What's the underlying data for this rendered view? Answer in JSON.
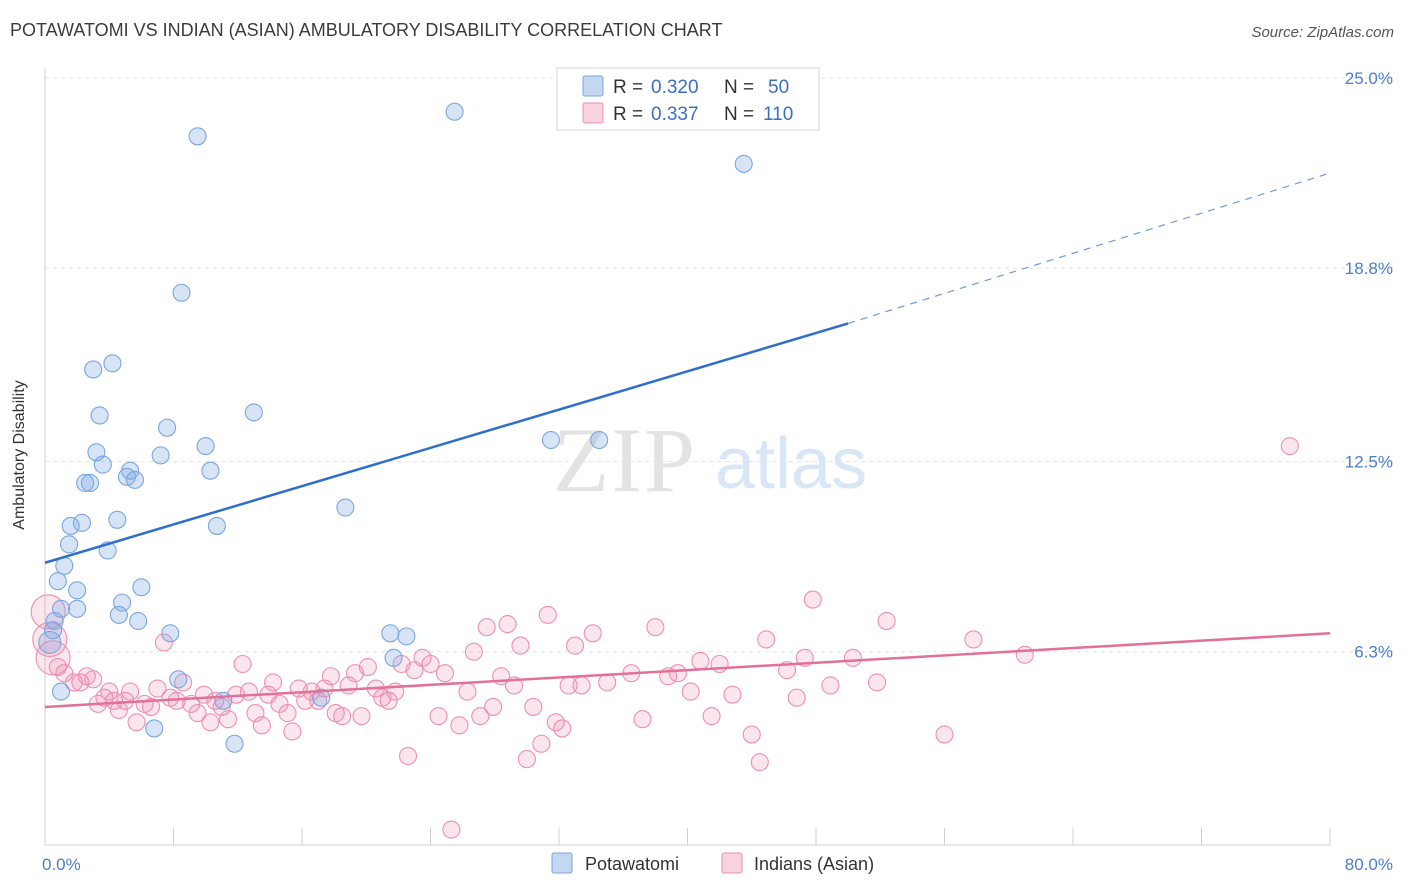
{
  "header": {
    "title": "POTAWATOMI VS INDIAN (ASIAN) AMBULATORY DISABILITY CORRELATION CHART",
    "source": "Source: ZipAtlas.com"
  },
  "watermark": {
    "zip": "ZIP",
    "atlas": "atlas"
  },
  "chart_data": {
    "type": "scatter",
    "ylabel": "Ambulatory Disability",
    "xlim": [
      0,
      80
    ],
    "ylim": [
      0,
      25.0
    ],
    "y_ticks": [
      6.3,
      12.5,
      18.8,
      25.0
    ],
    "y_tick_labels": [
      "6.3%",
      "12.5%",
      "18.8%",
      "25.0%"
    ],
    "x_tick_labels": [
      "0.0%",
      "80.0%"
    ],
    "legend_top": [
      {
        "r_label": "R =",
        "r_value": "0.320",
        "n_label": "N =",
        "n_value": "50",
        "color": "#7aa6e0"
      },
      {
        "r_label": "R =",
        "r_value": "0.337",
        "n_label": "N =",
        "n_value": "110",
        "color": "#ee8fb0"
      }
    ],
    "series": [
      {
        "name": "Potawatomi",
        "color": "#7aa6e0",
        "trend": {
          "x0": 0,
          "y0": 9.2,
          "x1": 50,
          "y1": 17.0,
          "dash_to_x": 80,
          "dash_to_y": 21.9
        },
        "points": [
          [
            0.3,
            6.6
          ],
          [
            0.5,
            7.0
          ],
          [
            0.6,
            7.3
          ],
          [
            0.8,
            8.6
          ],
          [
            1.0,
            7.7
          ],
          [
            1.2,
            9.1
          ],
          [
            1.5,
            9.8
          ],
          [
            1.6,
            10.4
          ],
          [
            2.0,
            8.3
          ],
          [
            2.0,
            7.7
          ],
          [
            2.3,
            10.5
          ],
          [
            2.5,
            11.8
          ],
          [
            2.8,
            11.8
          ],
          [
            3.0,
            15.5
          ],
          [
            3.2,
            12.8
          ],
          [
            3.4,
            14.0
          ],
          [
            3.6,
            12.4
          ],
          [
            3.9,
            9.6
          ],
          [
            4.2,
            15.7
          ],
          [
            4.5,
            10.6
          ],
          [
            4.6,
            7.5
          ],
          [
            4.8,
            7.9
          ],
          [
            5.1,
            12.0
          ],
          [
            5.3,
            12.2
          ],
          [
            5.6,
            11.9
          ],
          [
            5.8,
            7.3
          ],
          [
            6.0,
            8.4
          ],
          [
            6.8,
            3.8
          ],
          [
            7.2,
            12.7
          ],
          [
            7.6,
            13.6
          ],
          [
            7.8,
            6.9
          ],
          [
            8.3,
            5.4
          ],
          [
            8.5,
            18.0
          ],
          [
            9.5,
            23.1
          ],
          [
            10.0,
            13.0
          ],
          [
            10.3,
            12.2
          ],
          [
            10.7,
            10.4
          ],
          [
            11.1,
            4.7
          ],
          [
            11.8,
            3.3
          ],
          [
            13.0,
            14.1
          ],
          [
            17.2,
            4.8
          ],
          [
            18.7,
            11.0
          ],
          [
            21.5,
            6.9
          ],
          [
            21.7,
            6.1
          ],
          [
            22.5,
            6.8
          ],
          [
            25.5,
            23.9
          ],
          [
            31.5,
            13.2
          ],
          [
            34.5,
            13.2
          ],
          [
            43.5,
            22.2
          ],
          [
            1.0,
            5.0
          ]
        ]
      },
      {
        "name": "Indians (Asian)",
        "color": "#ee8fb0",
        "trend": {
          "x0": 0,
          "y0": 4.5,
          "x1": 80,
          "y1": 6.9
        },
        "points": [
          [
            0.2,
            7.6
          ],
          [
            0.3,
            6.7
          ],
          [
            0.5,
            6.1
          ],
          [
            0.8,
            5.8
          ],
          [
            1.2,
            5.6
          ],
          [
            1.8,
            5.3
          ],
          [
            2.2,
            5.3
          ],
          [
            2.6,
            5.5
          ],
          [
            3.0,
            5.4
          ],
          [
            3.3,
            4.6
          ],
          [
            3.7,
            4.8
          ],
          [
            4.0,
            5.0
          ],
          [
            4.3,
            4.7
          ],
          [
            4.6,
            4.4
          ],
          [
            5.0,
            4.7
          ],
          [
            5.3,
            5.0
          ],
          [
            5.7,
            4.0
          ],
          [
            6.2,
            4.6
          ],
          [
            6.6,
            4.5
          ],
          [
            7.0,
            5.1
          ],
          [
            7.4,
            6.6
          ],
          [
            7.8,
            4.8
          ],
          [
            8.2,
            4.7
          ],
          [
            8.6,
            5.3
          ],
          [
            9.1,
            4.6
          ],
          [
            9.5,
            4.3
          ],
          [
            9.9,
            4.9
          ],
          [
            10.3,
            4.0
          ],
          [
            10.6,
            4.7
          ],
          [
            11.0,
            4.5
          ],
          [
            11.4,
            4.1
          ],
          [
            11.9,
            4.9
          ],
          [
            12.3,
            5.9
          ],
          [
            12.7,
            5.0
          ],
          [
            13.1,
            4.3
          ],
          [
            13.5,
            3.9
          ],
          [
            13.9,
            4.9
          ],
          [
            14.2,
            5.3
          ],
          [
            14.6,
            4.6
          ],
          [
            15.1,
            4.3
          ],
          [
            15.4,
            3.7
          ],
          [
            15.8,
            5.1
          ],
          [
            16.2,
            4.7
          ],
          [
            16.6,
            5.0
          ],
          [
            17.0,
            4.7
          ],
          [
            17.4,
            5.1
          ],
          [
            17.8,
            5.5
          ],
          [
            18.1,
            4.3
          ],
          [
            18.5,
            4.2
          ],
          [
            18.9,
            5.2
          ],
          [
            19.3,
            5.6
          ],
          [
            19.7,
            4.2
          ],
          [
            20.1,
            5.8
          ],
          [
            20.6,
            5.1
          ],
          [
            21.0,
            4.8
          ],
          [
            21.4,
            4.7
          ],
          [
            21.8,
            5.0
          ],
          [
            22.2,
            5.9
          ],
          [
            22.6,
            2.9
          ],
          [
            23.0,
            5.7
          ],
          [
            23.5,
            6.1
          ],
          [
            24.0,
            5.9
          ],
          [
            24.5,
            4.2
          ],
          [
            24.9,
            5.6
          ],
          [
            25.3,
            0.5
          ],
          [
            25.8,
            3.9
          ],
          [
            26.3,
            5.0
          ],
          [
            26.7,
            6.3
          ],
          [
            27.1,
            4.2
          ],
          [
            27.5,
            7.1
          ],
          [
            27.9,
            4.5
          ],
          [
            28.4,
            5.5
          ],
          [
            28.8,
            7.2
          ],
          [
            29.2,
            5.2
          ],
          [
            29.6,
            6.5
          ],
          [
            30.0,
            2.8
          ],
          [
            30.4,
            4.5
          ],
          [
            30.9,
            3.3
          ],
          [
            31.3,
            7.5
          ],
          [
            31.8,
            4.0
          ],
          [
            32.2,
            3.8
          ],
          [
            32.6,
            5.2
          ],
          [
            33.0,
            6.5
          ],
          [
            33.4,
            5.2
          ],
          [
            34.1,
            6.9
          ],
          [
            35.0,
            5.3
          ],
          [
            36.5,
            5.6
          ],
          [
            37.2,
            4.1
          ],
          [
            38.0,
            7.1
          ],
          [
            38.8,
            5.5
          ],
          [
            39.4,
            5.6
          ],
          [
            40.2,
            5.0
          ],
          [
            40.8,
            6.0
          ],
          [
            41.5,
            4.2
          ],
          [
            42.0,
            5.9
          ],
          [
            42.8,
            4.9
          ],
          [
            44.0,
            3.6
          ],
          [
            44.5,
            2.7
          ],
          [
            44.9,
            6.7
          ],
          [
            46.2,
            5.7
          ],
          [
            46.8,
            4.8
          ],
          [
            47.3,
            6.1
          ],
          [
            47.8,
            8.0
          ],
          [
            48.9,
            5.2
          ],
          [
            50.3,
            6.1
          ],
          [
            51.8,
            5.3
          ],
          [
            52.4,
            7.3
          ],
          [
            56.0,
            3.6
          ],
          [
            57.8,
            6.7
          ],
          [
            61.0,
            6.2
          ],
          [
            77.5,
            13.0
          ]
        ]
      }
    ]
  }
}
